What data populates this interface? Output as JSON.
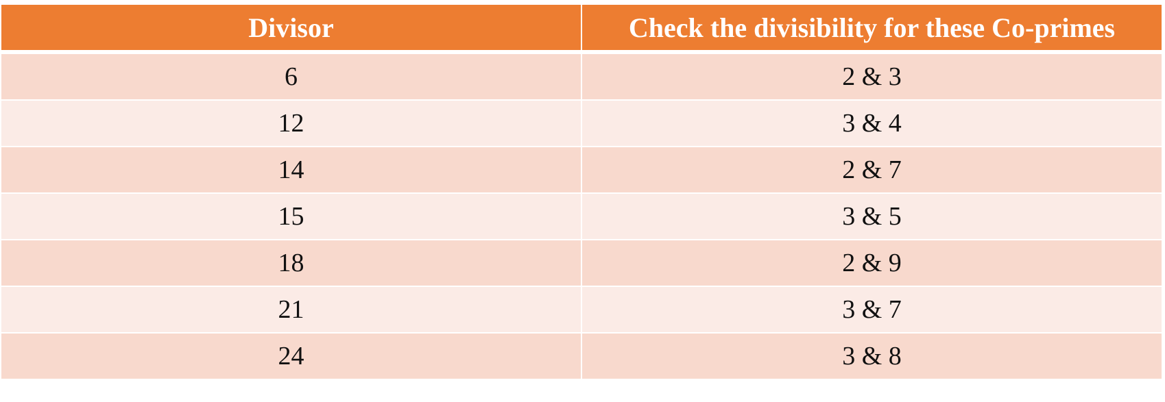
{
  "table": {
    "headers": [
      "Divisor",
      "Check the divisibility for these Co-primes"
    ],
    "rows": [
      [
        "6",
        "2 & 3"
      ],
      [
        "12",
        "3 & 4"
      ],
      [
        "14",
        "2 & 7"
      ],
      [
        "15",
        "3 & 5"
      ],
      [
        "18",
        "2 & 9"
      ],
      [
        "21",
        "3 & 7"
      ],
      [
        "24",
        "3 & 8"
      ]
    ]
  },
  "colors": {
    "header_bg": "#ed7d31",
    "row_dark": "#f8d9cd",
    "row_light": "#fbebe6"
  }
}
